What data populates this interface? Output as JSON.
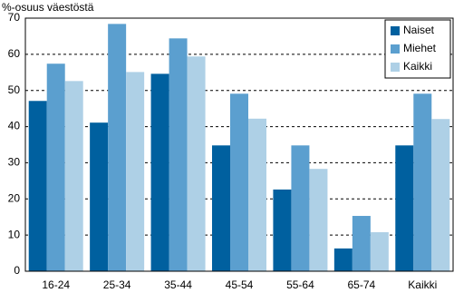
{
  "chart_data": {
    "type": "bar",
    "y_label": "%-osuus väestöstä",
    "categories": [
      "16-24",
      "25-34",
      "35-44",
      "45-54",
      "55-64",
      "65-74",
      "Kaikki"
    ],
    "series": [
      {
        "name": "Naiset",
        "color": "#00609f",
        "values": [
          47.1,
          41.1,
          54.6,
          34.8,
          22.6,
          6.3,
          34.8
        ]
      },
      {
        "name": "Miehet",
        "color": "#5b9fcf",
        "values": [
          57.4,
          68.4,
          64.4,
          49.1,
          34.8,
          15.3,
          49.1
        ]
      },
      {
        "name": "Kaikki",
        "color": "#aed0e6",
        "values": [
          52.6,
          55.1,
          59.4,
          42.2,
          28.3,
          10.8,
          42.1
        ]
      }
    ],
    "ylim": [
      0,
      70
    ],
    "yticks": [
      0,
      10,
      20,
      30,
      40,
      50,
      60,
      70
    ],
    "grid": true,
    "legend": "top-right"
  }
}
